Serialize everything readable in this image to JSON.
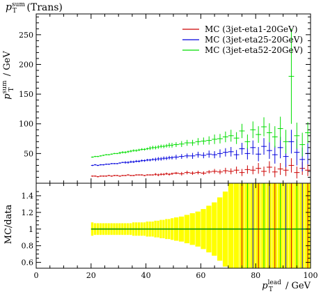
{
  "chart_data": {
    "type": "scatter",
    "title": {
      "main": "p",
      "sup": "sum",
      "sub": "T",
      "suffix": "(Trans)"
    },
    "ylabel": {
      "main": "p",
      "sup": "sum",
      "sub": "T",
      "suffix": "/ GeV"
    },
    "xlabel": {
      "main": "p",
      "sup": "lead",
      "sub": "T",
      "suffix": "/ GeV"
    },
    "ratio_ylabel": "MC/data",
    "xlim": [
      0,
      100
    ],
    "ylim": [
      0,
      285
    ],
    "ratio_ylim": [
      0.53,
      1.55
    ],
    "x_ticks": [
      0,
      20,
      40,
      60,
      80,
      100
    ],
    "y_ticks": [
      50,
      100,
      150,
      200,
      250
    ],
    "ratio_ticks": [
      0.6,
      0.8,
      1,
      1.2,
      1.4
    ],
    "legend_position": "top-right",
    "colors": {
      "red": "#cc0000",
      "blue": "#0000dd",
      "green": "#00dd00",
      "band": "#ffff00",
      "ref": "#008800"
    },
    "series": [
      {
        "name": "MC (3jet-eta1-20GeV)",
        "color": "red",
        "x": [
          20.5,
          21.5,
          22.5,
          23.5,
          24.5,
          25.5,
          26.5,
          27.5,
          28.5,
          29.5,
          30.5,
          31.5,
          32.5,
          33.5,
          34.5,
          35.5,
          36.5,
          37.5,
          38.5,
          39.5,
          40.5,
          41.5,
          42.5,
          43.5,
          44.5,
          45.5,
          46.5,
          47.5,
          48.5,
          49.5,
          51,
          53,
          55,
          57,
          59,
          61,
          63,
          65,
          67,
          69,
          71,
          73,
          75,
          77,
          79,
          81,
          83,
          85,
          87,
          89,
          91,
          93,
          95,
          97,
          99
        ],
        "y": [
          12,
          12,
          11,
          12,
          12,
          12,
          13,
          12,
          13,
          13,
          12,
          13,
          13,
          14,
          13,
          13,
          14,
          14,
          14,
          13,
          14,
          14,
          14,
          15,
          14,
          15,
          15,
          16,
          15,
          16,
          17,
          16,
          18,
          17,
          18,
          17,
          19,
          20,
          19,
          21,
          20,
          22,
          18,
          23,
          22,
          25,
          20,
          27,
          19,
          24,
          22,
          30,
          18,
          25,
          22
        ],
        "err": [
          1,
          1,
          1,
          1,
          1,
          1,
          1,
          1,
          1,
          1,
          1,
          1,
          1,
          1,
          1,
          1,
          1,
          1,
          1,
          1,
          1,
          1,
          1,
          2,
          2,
          2,
          2,
          2,
          2,
          2,
          2,
          3,
          3,
          3,
          3,
          3,
          3,
          4,
          4,
          5,
          5,
          6,
          6,
          7,
          7,
          9,
          8,
          10,
          9,
          10,
          10,
          12,
          10,
          11,
          10
        ]
      },
      {
        "name": "MC (3jet-eta25-20GeV)",
        "color": "blue",
        "x": [
          20.5,
          21.5,
          22.5,
          23.5,
          24.5,
          25.5,
          26.5,
          27.5,
          28.5,
          29.5,
          30.5,
          31.5,
          32.5,
          33.5,
          34.5,
          35.5,
          36.5,
          37.5,
          38.5,
          39.5,
          40.5,
          41.5,
          42.5,
          43.5,
          44.5,
          45.5,
          46.5,
          47.5,
          48.5,
          49.5,
          51,
          53,
          55,
          57,
          59,
          61,
          63,
          65,
          67,
          69,
          71,
          73,
          75,
          77,
          79,
          81,
          83,
          85,
          87,
          89,
          91,
          93,
          95,
          97,
          99
        ],
        "y": [
          30,
          31,
          30,
          31,
          31,
          32,
          32,
          33,
          33,
          33,
          34,
          35,
          35,
          35,
          36,
          36,
          37,
          37,
          38,
          38,
          39,
          39,
          40,
          40,
          41,
          41,
          42,
          42,
          43,
          43,
          44,
          45,
          46,
          46,
          48,
          47,
          49,
          48,
          50,
          52,
          53,
          48,
          58,
          50,
          60,
          49,
          62,
          55,
          48,
          60,
          45,
          70,
          52,
          40,
          50
        ],
        "err": [
          1,
          1,
          1,
          1,
          1,
          1,
          1,
          1,
          1,
          1,
          1,
          1,
          2,
          2,
          2,
          2,
          2,
          2,
          2,
          2,
          2,
          2,
          2,
          3,
          3,
          3,
          3,
          3,
          3,
          3,
          4,
          4,
          4,
          5,
          5,
          5,
          6,
          6,
          7,
          7,
          8,
          8,
          10,
          10,
          12,
          12,
          14,
          14,
          15,
          18,
          18,
          20,
          22,
          20,
          18
        ]
      },
      {
        "name": "MC (3jet-eta52-20GeV)",
        "color": "green",
        "x": [
          20.5,
          21.5,
          22.5,
          23.5,
          24.5,
          25.5,
          26.5,
          27.5,
          28.5,
          29.5,
          30.5,
          31.5,
          32.5,
          33.5,
          34.5,
          35.5,
          36.5,
          37.5,
          38.5,
          39.5,
          40.5,
          41.5,
          42.5,
          43.5,
          44.5,
          45.5,
          46.5,
          47.5,
          48.5,
          49.5,
          51,
          53,
          55,
          57,
          59,
          61,
          63,
          65,
          67,
          69,
          71,
          73,
          75,
          77,
          79,
          81,
          83,
          85,
          87,
          89,
          91,
          93,
          95,
          97,
          99
        ],
        "y": [
          44,
          45,
          45,
          46,
          47,
          48,
          48,
          49,
          50,
          50,
          51,
          52,
          52,
          53,
          54,
          55,
          55,
          56,
          57,
          57,
          58,
          59,
          60,
          60,
          61,
          62,
          62,
          63,
          64,
          64,
          65,
          66,
          68,
          68,
          70,
          71,
          72,
          74,
          75,
          78,
          80,
          76,
          88,
          70,
          90,
          82,
          95,
          85,
          78,
          92,
          70,
          180,
          80,
          65,
          85
        ],
        "err": [
          1,
          1,
          1,
          1,
          1,
          1,
          1,
          1,
          1,
          1,
          2,
          2,
          2,
          2,
          2,
          2,
          2,
          2,
          2,
          2,
          2,
          3,
          3,
          3,
          3,
          3,
          3,
          3,
          4,
          4,
          4,
          5,
          5,
          5,
          6,
          6,
          7,
          8,
          8,
          9,
          10,
          10,
          12,
          12,
          14,
          14,
          16,
          16,
          18,
          20,
          20,
          80,
          22,
          20,
          18
        ]
      }
    ],
    "ratio": {
      "x": [
        20.5,
        21.5,
        22.5,
        23.5,
        24.5,
        25.5,
        26.5,
        27.5,
        28.5,
        29.5,
        30.5,
        31.5,
        32.5,
        33.5,
        34.5,
        35.5,
        36.5,
        37.5,
        38.5,
        39.5,
        40.5,
        41.5,
        42.5,
        43.5,
        44.5,
        45.5,
        46.5,
        47.5,
        48.5,
        49.5,
        51,
        53,
        55,
        57,
        59,
        61,
        63,
        65,
        67,
        69,
        71,
        73,
        75,
        77,
        79,
        81,
        83,
        85,
        87,
        89,
        91,
        93,
        95,
        97,
        99
      ],
      "band": [
        0.08,
        0.07,
        0.07,
        0.07,
        0.07,
        0.07,
        0.07,
        0.07,
        0.07,
        0.07,
        0.07,
        0.07,
        0.07,
        0.07,
        0.07,
        0.08,
        0.08,
        0.08,
        0.08,
        0.08,
        0.09,
        0.09,
        0.09,
        0.1,
        0.1,
        0.11,
        0.11,
        0.12,
        0.12,
        0.13,
        0.14,
        0.15,
        0.17,
        0.19,
        0.21,
        0.24,
        0.28,
        0.32,
        0.38,
        0.45,
        0.55,
        0.6,
        0.7,
        0.7,
        0.7,
        0.7,
        0.7,
        0.7,
        0.7,
        0.7,
        0.7,
        0.7,
        0.7,
        0.7,
        0.7
      ]
    }
  }
}
